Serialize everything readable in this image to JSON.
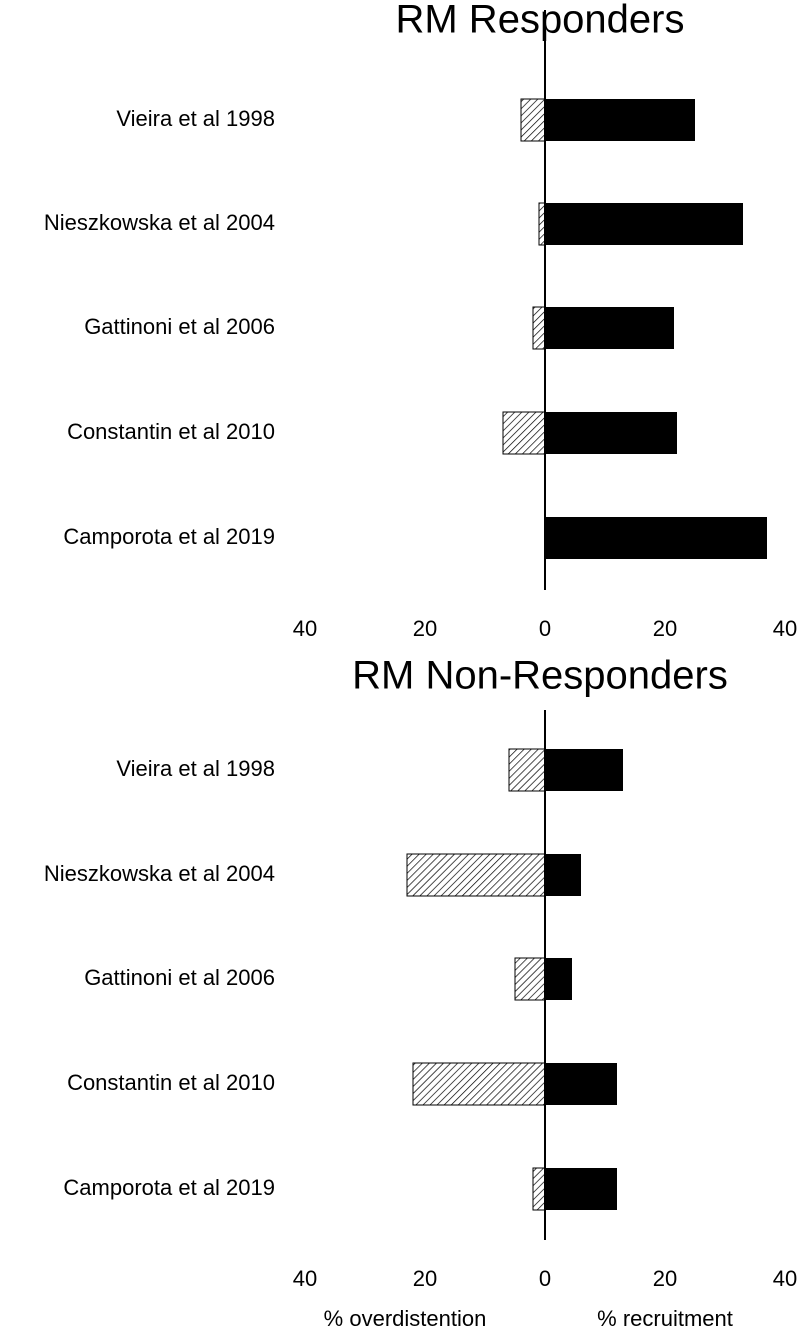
{
  "chart_data": [
    {
      "type": "diverging_bar",
      "title": "RM Responders",
      "categories": [
        "Vieira et al 1998",
        "Nieszkowska et al 2004",
        "Gattinoni et al 2006",
        "Constantin et al 2010",
        "Camporota et al  2019"
      ],
      "series": [
        {
          "name": "% overdistention",
          "color": "#000000",
          "pattern": "hatch",
          "values": [
            -4,
            -1,
            -2,
            -7,
            0
          ]
        },
        {
          "name": "% recruitment",
          "color": "#000000",
          "values": [
            25,
            33,
            21.5,
            22,
            37
          ]
        }
      ],
      "xlim": [
        -40,
        40
      ],
      "xticks": [
        {
          "value": -40,
          "label": "40"
        },
        {
          "value": -20,
          "label": "20"
        },
        0,
        20,
        40
      ]
    },
    {
      "type": "diverging_bar",
      "title": "RM Non-Responders",
      "categories": [
        "Vieira et al 1998",
        "Nieszkowska et al 2004",
        "Gattinoni et al 2006",
        "Constantin et al 2010",
        "Camporota et al  2019"
      ],
      "series": [
        {
          "name": "% overdistention",
          "color": "#000000",
          "pattern": "hatch",
          "values": [
            -6,
            -23,
            -5,
            -22,
            -2
          ]
        },
        {
          "name": "% recruitment",
          "color": "#000000",
          "values": [
            13,
            6,
            4.5,
            12,
            12
          ]
        }
      ],
      "xlim": [
        -40,
        40
      ],
      "xticks": [
        {
          "value": -40,
          "label": "40"
        },
        {
          "value": -20,
          "label": "20"
        },
        0,
        20,
        40
      ],
      "xlabel_left": "% overdistention",
      "xlabel_right": "% recruitment"
    }
  ]
}
